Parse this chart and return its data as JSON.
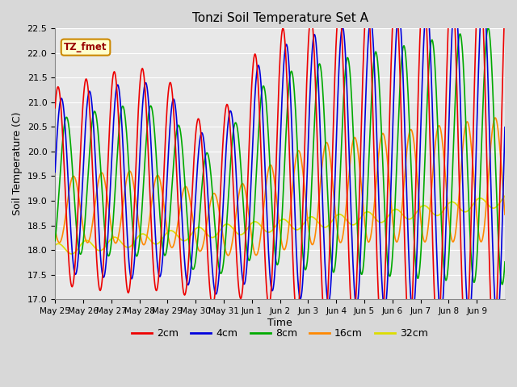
{
  "title": "Tonzi Soil Temperature Set A",
  "xlabel": "Time",
  "ylabel": "Soil Temperature (C)",
  "annotation": "TZ_fmet",
  "ylim": [
    17.0,
    22.5
  ],
  "xlim": [
    0,
    16
  ],
  "figsize": [
    6.4,
    4.8
  ],
  "dpi": 100,
  "plot_bg_color": "#e8e8e8",
  "series": {
    "2cm": {
      "color": "#ee0000",
      "lw": 1.2
    },
    "4cm": {
      "color": "#0000dd",
      "lw": 1.2
    },
    "8cm": {
      "color": "#00aa00",
      "lw": 1.2
    },
    "16cm": {
      "color": "#ff8800",
      "lw": 1.2
    },
    "32cm": {
      "color": "#dddd00",
      "lw": 1.2
    }
  },
  "legend_colors": [
    "#ee0000",
    "#0000dd",
    "#00aa00",
    "#ff8800",
    "#dddd00"
  ],
  "legend_labels": [
    "2cm",
    "4cm",
    "8cm",
    "16cm",
    "32cm"
  ],
  "xtick_labels": [
    "May 25",
    "May 26",
    "May 27",
    "May 28",
    "May 29",
    "May 30",
    "May 31",
    "Jun 1",
    "Jun 2",
    "Jun 3",
    "Jun 4",
    "Jun 5",
    "Jun 6",
    "Jun 7",
    "Jun 8",
    "Jun 9"
  ],
  "grid_color": "#ffffff",
  "annotation_color": "#990000",
  "annotation_bg": "#ffffcc",
  "annotation_edge": "#cc8800"
}
